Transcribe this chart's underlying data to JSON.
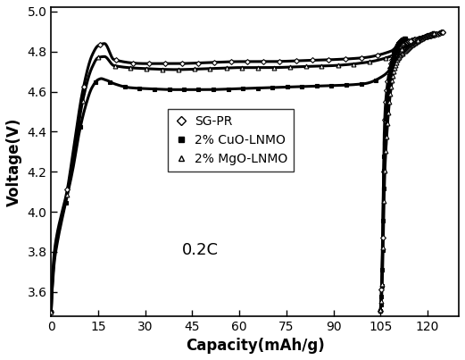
{
  "xlabel": "Capacity(mAh/g)",
  "ylabel": "Voltage(V)",
  "annotation": "0.2C",
  "xlim": [
    0,
    130
  ],
  "ylim": [
    3.48,
    5.02
  ],
  "xticks": [
    0,
    15,
    30,
    45,
    60,
    75,
    90,
    105,
    120
  ],
  "yticks": [
    3.6,
    3.8,
    4.0,
    4.2,
    4.4,
    4.6,
    4.8,
    5.0
  ],
  "legend_labels": [
    "SG-PR",
    "2% CuO-LNMO",
    "2% MgO-LNMO"
  ],
  "figsize": [
    5.21,
    4.03
  ],
  "dpi": 100,
  "sgpr_charge_x": [
    0,
    0.2,
    0.5,
    1.0,
    2.0,
    3.0,
    5.0,
    7.0,
    10.0,
    13.0,
    15.0,
    17.0,
    20.0,
    30.0,
    40.0,
    50.0,
    60.0,
    70.0,
    80.0,
    90.0,
    100.0,
    108.0,
    112.0,
    115.0,
    118.0,
    120.0,
    122.0,
    123.5,
    124.5,
    125.0
  ],
  "sgpr_charge_v": [
    3.5,
    3.6,
    3.7,
    3.8,
    3.9,
    3.97,
    4.1,
    4.3,
    4.6,
    4.78,
    4.83,
    4.84,
    4.76,
    4.74,
    4.74,
    4.745,
    4.75,
    4.75,
    4.755,
    4.76,
    4.77,
    4.8,
    4.835,
    4.855,
    4.872,
    4.881,
    4.888,
    4.892,
    4.896,
    4.898
  ],
  "sgpr_discharge_x": [
    125.0,
    124.5,
    124.0,
    123.0,
    122.0,
    121.0,
    120.0,
    119.0,
    118.0,
    117.0,
    116.0,
    115.0,
    114.0,
    113.0,
    112.0,
    111.0,
    110.5,
    110.0,
    109.5,
    109.0,
    108.5,
    108.0,
    107.5,
    107.0,
    106.5,
    106.2,
    106.0,
    105.8,
    105.5,
    105.3,
    105.1,
    105.0
  ],
  "sgpr_discharge_v": [
    4.898,
    4.896,
    4.893,
    4.888,
    4.884,
    4.88,
    4.876,
    4.872,
    4.868,
    4.864,
    4.86,
    4.856,
    4.852,
    4.847,
    4.84,
    4.83,
    4.822,
    4.81,
    4.795,
    4.775,
    4.748,
    4.715,
    4.67,
    4.605,
    4.51,
    4.38,
    4.2,
    3.99,
    3.72,
    3.6,
    3.53,
    3.505
  ],
  "cuo_charge_x": [
    0,
    0.2,
    0.5,
    1.0,
    2.0,
    3.0,
    5.0,
    7.0,
    9.0,
    11.0,
    13.0,
    15.0,
    16.0,
    17.0,
    18.0,
    20.0,
    25.0,
    30.0,
    40.0,
    50.0,
    60.0,
    70.0,
    80.0,
    90.0,
    100.0,
    106.0,
    109.0,
    110.5,
    111.5,
    112.5,
    113.0
  ],
  "cuo_charge_v": [
    3.5,
    3.58,
    3.65,
    3.75,
    3.85,
    3.93,
    4.07,
    4.22,
    4.4,
    4.53,
    4.62,
    4.66,
    4.665,
    4.66,
    4.655,
    4.64,
    4.62,
    4.615,
    4.61,
    4.61,
    4.615,
    4.62,
    4.625,
    4.63,
    4.64,
    4.68,
    4.73,
    4.775,
    4.82,
    4.85,
    4.865
  ],
  "cuo_discharge_x": [
    113.0,
    112.5,
    112.0,
    111.5,
    111.0,
    110.5,
    110.0,
    109.5,
    109.0,
    108.5,
    108.0,
    107.5,
    107.0,
    106.5,
    106.3,
    106.1,
    105.9,
    105.8,
    105.6,
    105.4,
    105.2,
    105.05,
    105.0
  ],
  "cuo_discharge_v": [
    4.865,
    4.863,
    4.858,
    4.852,
    4.844,
    4.833,
    4.818,
    4.797,
    4.768,
    4.728,
    4.675,
    4.605,
    4.515,
    4.395,
    4.32,
    4.218,
    4.08,
    3.94,
    3.75,
    3.63,
    3.555,
    3.515,
    3.505
  ],
  "mgo_charge_x": [
    0,
    0.2,
    0.5,
    1.0,
    2.0,
    3.0,
    5.0,
    7.0,
    10.0,
    13.0,
    15.0,
    17.0,
    20.0,
    30.0,
    40.0,
    50.0,
    60.0,
    70.0,
    80.0,
    90.0,
    100.0,
    108.0,
    112.0,
    115.0,
    117.0,
    119.0,
    120.0,
    121.0,
    121.5,
    122.0
  ],
  "mgo_charge_v": [
    3.5,
    3.58,
    3.67,
    3.77,
    3.87,
    3.95,
    4.08,
    4.25,
    4.55,
    4.72,
    4.77,
    4.775,
    4.73,
    4.715,
    4.71,
    4.715,
    4.72,
    4.72,
    4.725,
    4.73,
    4.745,
    4.775,
    4.815,
    4.842,
    4.86,
    4.875,
    4.882,
    4.888,
    4.891,
    4.893
  ],
  "mgo_discharge_x": [
    122.0,
    121.5,
    121.0,
    120.5,
    120.0,
    119.5,
    119.0,
    118.5,
    118.0,
    117.0,
    116.0,
    115.0,
    114.0,
    113.0,
    112.0,
    111.0,
    110.5,
    110.0,
    109.5,
    109.0,
    108.5,
    108.0,
    107.5,
    107.0,
    106.5,
    106.3,
    106.1,
    105.9,
    105.7,
    105.5,
    105.3,
    105.1,
    105.0
  ],
  "mgo_discharge_v": [
    4.893,
    4.891,
    4.888,
    4.885,
    4.882,
    4.878,
    4.874,
    4.87,
    4.865,
    4.856,
    4.846,
    4.835,
    4.823,
    4.809,
    4.793,
    4.773,
    4.758,
    4.738,
    4.712,
    4.677,
    4.63,
    4.567,
    4.483,
    4.375,
    4.235,
    4.143,
    4.02,
    3.86,
    3.71,
    3.61,
    3.56,
    3.525,
    3.51
  ]
}
